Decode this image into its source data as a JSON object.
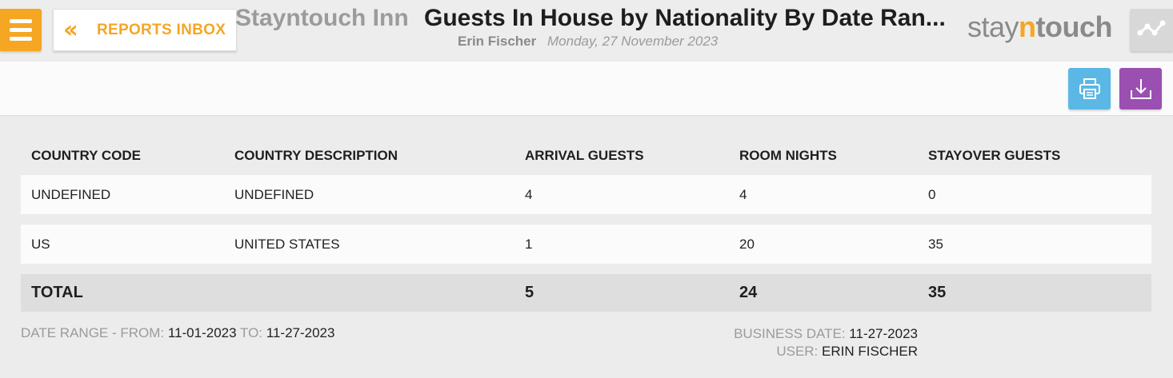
{
  "header": {
    "back_label": "REPORTS INBOX",
    "hotel_name": "Stayntouch Inn",
    "report_title": "Guests In House by Nationality By Date Ran...",
    "user_name": "Erin Fischer",
    "date": "Monday, 27 November 2023",
    "logo": {
      "part1": "stay",
      "part2": "n",
      "part3": "touch"
    },
    "colors": {
      "accent": "#f5a623",
      "print": "#5bb8e6",
      "download": "#9b4fb1"
    },
    "icons": {
      "menu": "hamburger-icon",
      "back": "double-chevron-left-icon",
      "graph": "line-chart-icon",
      "print": "printer-icon",
      "download": "download-icon"
    }
  },
  "table": {
    "columns": [
      "COUNTRY CODE",
      "COUNTRY DESCRIPTION",
      "ARRIVAL GUESTS",
      "ROOM NIGHTS",
      "STAYOVER GUESTS"
    ],
    "rows": [
      [
        "UNDEFINED",
        "UNDEFINED",
        "4",
        "4",
        "0"
      ],
      [
        "US",
        "UNITED STATES",
        "1",
        "20",
        "35"
      ]
    ],
    "total": {
      "label": "TOTAL",
      "arrival": "5",
      "room_nights": "24",
      "stayover": "35"
    }
  },
  "footer": {
    "date_range_label": "DATE RANGE - FROM:",
    "date_from": "11-01-2023",
    "to_label": "TO:",
    "date_to": "11-27-2023",
    "business_date_label": "BUSINESS DATE:",
    "business_date": "11-27-2023",
    "user_label": "USER:",
    "user": "ERIN FISCHER"
  }
}
